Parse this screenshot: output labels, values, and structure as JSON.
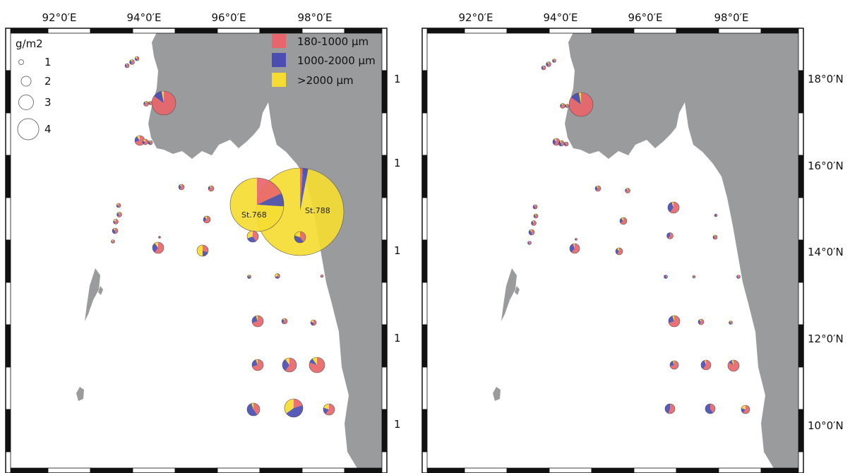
{
  "colors": {
    "land": "#9a9b9d",
    "fraction_small": "#e8666b",
    "fraction_medium": "#4b4db3",
    "fraction_large": "#f5dc32",
    "frame_dark": "#111111",
    "frame_light": "#ffffff"
  },
  "left_map": {
    "top_ticks": [
      "92°0′E",
      "94°0′E",
      "96°0′E",
      "98°0′E"
    ],
    "size_legend": {
      "unit": "g/m2",
      "entries": [
        "1",
        "2",
        "3",
        "4"
      ]
    },
    "fraction_legend": [
      "180-1000 µm",
      "1000-2000 µm",
      ">2000 µm"
    ],
    "station_labels": [
      "St.768",
      "St.788"
    ],
    "cropped_right_ticks": [
      "1",
      "1",
      "1",
      "1",
      "1"
    ]
  },
  "right_map": {
    "top_ticks": [
      "92°0′E",
      "94°0′E",
      "96°0′E",
      "98°0′E"
    ],
    "right_ticks": [
      "18°0′N",
      "16°0′N",
      "14°0′N",
      "12°0′N",
      "10°0′N"
    ]
  }
}
